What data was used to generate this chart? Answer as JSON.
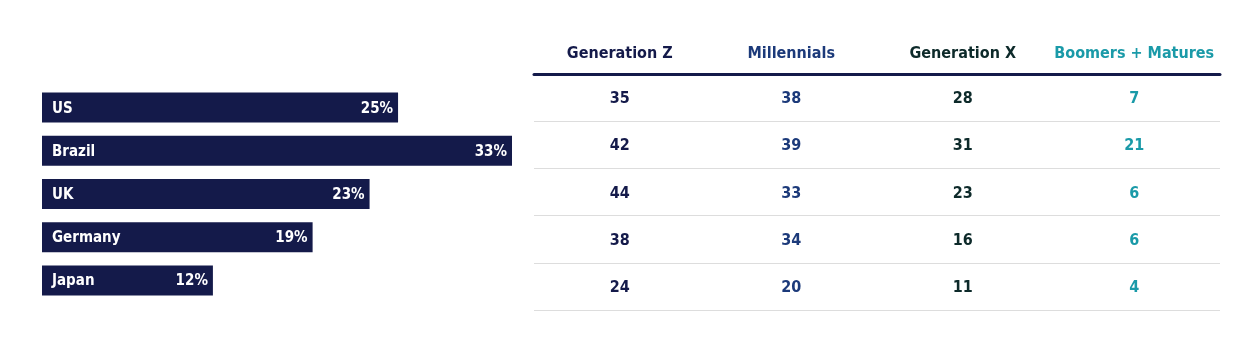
{
  "chart_data": [
    {
      "type": "bar",
      "orientation": "horizontal",
      "categories": [
        "US",
        "Brazil",
        "UK",
        "Germany",
        "Japan"
      ],
      "color": "#141a4a",
      "values": [
        25,
        33,
        23,
        19,
        12
      ],
      "value_labels": [
        "25%",
        "33%",
        "23%",
        "19%",
        "12%"
      ]
    },
    {
      "type": "heatmap",
      "categories": [
        "Generation Z",
        "Millennials",
        "Generation X",
        "Boomers + Matures"
      ],
      "colors": [
        "#141a4a",
        "#1c3a7a",
        "#0d2a2a",
        "#1a9aa8"
      ],
      "y_categories": [
        null,
        null,
        null,
        null,
        null
      ],
      "data_labels": true,
      "cells": [
        [
          35,
          38,
          28,
          7
        ],
        [
          42,
          39,
          31,
          21
        ],
        [
          44,
          33,
          23,
          6
        ],
        [
          38,
          34,
          16,
          6
        ],
        [
          24,
          20,
          11,
          4
        ]
      ]
    }
  ]
}
